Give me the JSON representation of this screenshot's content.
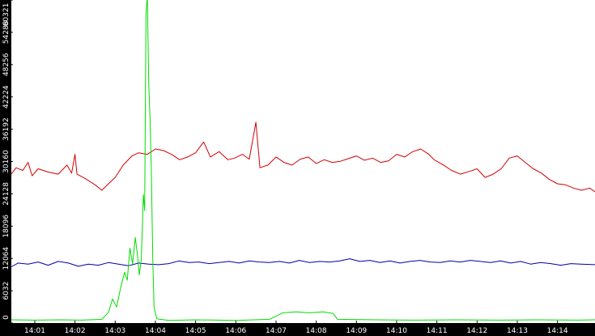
{
  "chart_data": {
    "type": "line",
    "title": "",
    "xlabel": "",
    "ylabel": "",
    "x_start": "14:00:25",
    "x_end": "14:14:56",
    "x_ticks": [
      "14:01",
      "14:02",
      "14:03",
      "14:04",
      "14:05",
      "14:06",
      "14:07",
      "14:08",
      "14:09",
      "14:10",
      "14:11",
      "14:12",
      "14:13",
      "14:14"
    ],
    "y_ticks": [
      0,
      6032,
      12064,
      18096,
      24128,
      30160,
      36192,
      42224,
      48256,
      54288,
      60321
    ],
    "ylim": [
      0,
      60321
    ],
    "grid": false,
    "legend": "none",
    "colors": {
      "red": "#d40000",
      "blue": "#0000a8",
      "green": "#00dd00",
      "axis": "#000000",
      "text": "#ffffff"
    },
    "series": [
      {
        "color": "red",
        "points": [
          [
            "14:00:25",
            27800
          ],
          [
            "14:00:32",
            29000
          ],
          [
            "14:00:42",
            28500
          ],
          [
            "14:00:50",
            30000
          ],
          [
            "14:00:56",
            27500
          ],
          [
            "14:01:05",
            28800
          ],
          [
            "14:01:20",
            28200
          ],
          [
            "14:01:35",
            27800
          ],
          [
            "14:01:48",
            29500
          ],
          [
            "14:01:55",
            28000
          ],
          [
            "14:02:00",
            31500
          ],
          [
            "14:02:03",
            27800
          ],
          [
            "14:02:15",
            27000
          ],
          [
            "14:02:30",
            25800
          ],
          [
            "14:02:40",
            24800
          ],
          [
            "14:02:50",
            26000
          ],
          [
            "14:03:00",
            27200
          ],
          [
            "14:03:12",
            29500
          ],
          [
            "14:03:25",
            31200
          ],
          [
            "14:03:35",
            31800
          ],
          [
            "14:03:48",
            31500
          ],
          [
            "14:04:00",
            32500
          ],
          [
            "14:04:12",
            32200
          ],
          [
            "14:04:24",
            31500
          ],
          [
            "14:04:36",
            30500
          ],
          [
            "14:04:48",
            31000
          ],
          [
            "14:05:00",
            31800
          ],
          [
            "14:05:12",
            33800
          ],
          [
            "14:05:22",
            31000
          ],
          [
            "14:05:35",
            32000
          ],
          [
            "14:05:48",
            30500
          ],
          [
            "14:05:58",
            30800
          ],
          [
            "14:06:10",
            31500
          ],
          [
            "14:06:20",
            30600
          ],
          [
            "14:06:30",
            37500
          ],
          [
            "14:06:36",
            29000
          ],
          [
            "14:06:48",
            29500
          ],
          [
            "14:07:00",
            31000
          ],
          [
            "14:07:12",
            30000
          ],
          [
            "14:07:24",
            29500
          ],
          [
            "14:07:36",
            30600
          ],
          [
            "14:07:48",
            31000
          ],
          [
            "14:08:00",
            29800
          ],
          [
            "14:08:12",
            30500
          ],
          [
            "14:08:24",
            30000
          ],
          [
            "14:08:36",
            30200
          ],
          [
            "14:08:48",
            30700
          ],
          [
            "14:09:00",
            31200
          ],
          [
            "14:09:12",
            30400
          ],
          [
            "14:09:24",
            30800
          ],
          [
            "14:09:36",
            30000
          ],
          [
            "14:09:48",
            30300
          ],
          [
            "14:10:00",
            31500
          ],
          [
            "14:10:12",
            31000
          ],
          [
            "14:10:24",
            32000
          ],
          [
            "14:10:36",
            32500
          ],
          [
            "14:10:48",
            31500
          ],
          [
            "14:10:56",
            30500
          ],
          [
            "14:11:10",
            29500
          ],
          [
            "14:11:22",
            28500
          ],
          [
            "14:11:35",
            27800
          ],
          [
            "14:11:48",
            28300
          ],
          [
            "14:12:00",
            28800
          ],
          [
            "14:12:12",
            27200
          ],
          [
            "14:12:24",
            27800
          ],
          [
            "14:12:36",
            28800
          ],
          [
            "14:12:48",
            30800
          ],
          [
            "14:13:00",
            31200
          ],
          [
            "14:13:12",
            30000
          ],
          [
            "14:13:24",
            28800
          ],
          [
            "14:13:36",
            28000
          ],
          [
            "14:13:48",
            26800
          ],
          [
            "14:14:00",
            26000
          ],
          [
            "14:14:12",
            25800
          ],
          [
            "14:14:24",
            25200
          ],
          [
            "14:14:36",
            24800
          ],
          [
            "14:14:48",
            25200
          ],
          [
            "14:14:56",
            24500
          ]
        ]
      },
      {
        "color": "blue",
        "points": [
          [
            "14:00:25",
            10500
          ],
          [
            "14:00:35",
            11200
          ],
          [
            "14:00:50",
            11000
          ],
          [
            "14:01:05",
            11400
          ],
          [
            "14:01:20",
            10800
          ],
          [
            "14:01:35",
            11500
          ],
          [
            "14:01:50",
            11200
          ],
          [
            "14:02:05",
            10600
          ],
          [
            "14:02:20",
            11000
          ],
          [
            "14:02:35",
            10800
          ],
          [
            "14:02:50",
            11300
          ],
          [
            "14:03:05",
            11000
          ],
          [
            "14:03:20",
            10700
          ],
          [
            "14:03:35",
            11200
          ],
          [
            "14:03:50",
            11000
          ],
          [
            "14:04:05",
            10900
          ],
          [
            "14:04:20",
            11100
          ],
          [
            "14:04:35",
            11600
          ],
          [
            "14:04:50",
            11300
          ],
          [
            "14:05:05",
            11400
          ],
          [
            "14:05:20",
            11100
          ],
          [
            "14:05:35",
            11300
          ],
          [
            "14:05:50",
            11500
          ],
          [
            "14:06:05",
            11200
          ],
          [
            "14:06:20",
            11600
          ],
          [
            "14:06:35",
            11400
          ],
          [
            "14:06:50",
            11300
          ],
          [
            "14:07:05",
            11500
          ],
          [
            "14:07:20",
            11200
          ],
          [
            "14:07:35",
            11700
          ],
          [
            "14:07:50",
            11300
          ],
          [
            "14:08:05",
            11500
          ],
          [
            "14:08:20",
            11400
          ],
          [
            "14:08:35",
            11600
          ],
          [
            "14:08:50",
            12000
          ],
          [
            "14:09:05",
            11500
          ],
          [
            "14:09:20",
            11700
          ],
          [
            "14:09:35",
            11300
          ],
          [
            "14:09:50",
            11600
          ],
          [
            "14:10:05",
            11200
          ],
          [
            "14:10:20",
            11500
          ],
          [
            "14:10:35",
            11700
          ],
          [
            "14:10:50",
            11400
          ],
          [
            "14:11:05",
            11300
          ],
          [
            "14:11:20",
            11600
          ],
          [
            "14:11:35",
            11400
          ],
          [
            "14:11:50",
            11700
          ],
          [
            "14:12:05",
            11500
          ],
          [
            "14:12:20",
            11300
          ],
          [
            "14:12:35",
            11600
          ],
          [
            "14:12:50",
            11200
          ],
          [
            "14:13:05",
            11500
          ],
          [
            "14:13:20",
            11000
          ],
          [
            "14:13:35",
            11300
          ],
          [
            "14:13:50",
            11100
          ],
          [
            "14:14:05",
            10800
          ],
          [
            "14:14:20",
            11100
          ],
          [
            "14:14:35",
            11000
          ],
          [
            "14:14:56",
            10900
          ]
        ]
      },
      {
        "color": "green",
        "points": [
          [
            "14:00:25",
            600
          ],
          [
            "14:01:00",
            550
          ],
          [
            "14:01:40",
            600
          ],
          [
            "14:02:10",
            550
          ],
          [
            "14:02:40",
            700
          ],
          [
            "14:02:50",
            2000
          ],
          [
            "14:02:56",
            4500
          ],
          [
            "14:03:02",
            3000
          ],
          [
            "14:03:08",
            6500
          ],
          [
            "14:03:14",
            9500
          ],
          [
            "14:03:18",
            8000
          ],
          [
            "14:03:22",
            14000
          ],
          [
            "14:03:26",
            11000
          ],
          [
            "14:03:30",
            16000
          ],
          [
            "14:03:33",
            13000
          ],
          [
            "14:03:36",
            9000
          ],
          [
            "14:03:39",
            12000
          ],
          [
            "14:03:42",
            24000
          ],
          [
            "14:03:44",
            21000
          ],
          [
            "14:03:46",
            58000
          ],
          [
            "14:03:48",
            61000
          ],
          [
            "14:03:50",
            45000
          ],
          [
            "14:03:52",
            38000
          ],
          [
            "14:03:54",
            28000
          ],
          [
            "14:03:56",
            12000
          ],
          [
            "14:03:58",
            3000
          ],
          [
            "14:04:02",
            800
          ],
          [
            "14:04:20",
            500
          ],
          [
            "14:05:00",
            600
          ],
          [
            "14:06:00",
            500
          ],
          [
            "14:06:50",
            700
          ],
          [
            "14:07:10",
            1900
          ],
          [
            "14:07:30",
            2100
          ],
          [
            "14:07:50",
            1900
          ],
          [
            "14:08:10",
            2100
          ],
          [
            "14:08:25",
            1800
          ],
          [
            "14:08:32",
            700
          ],
          [
            "14:09:30",
            600
          ],
          [
            "14:10:30",
            550
          ],
          [
            "14:11:30",
            600
          ],
          [
            "14:12:30",
            550
          ],
          [
            "14:13:30",
            600
          ],
          [
            "14:14:30",
            550
          ],
          [
            "14:14:56",
            600
          ]
        ]
      }
    ]
  }
}
